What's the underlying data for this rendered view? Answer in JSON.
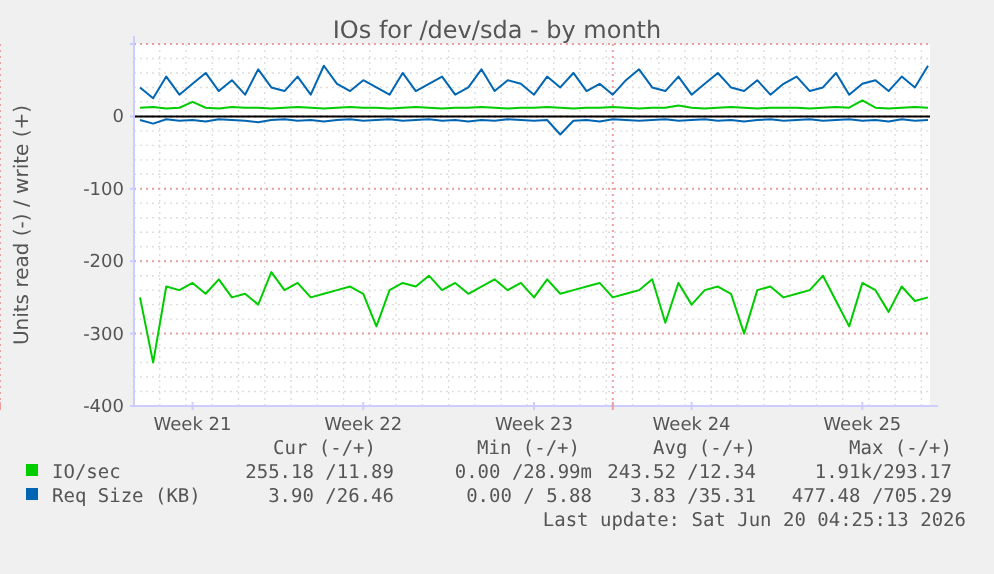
{
  "chart_data": {
    "type": "line",
    "title": "IOs for /dev/sda - by month",
    "ylabel": "Units read (-) / write (+)",
    "categories": [
      null,
      null,
      null,
      null,
      "Week 21",
      null,
      null,
      null,
      null,
      null,
      null,
      null,
      null,
      null,
      null,
      null,
      null,
      "Week 22",
      null,
      null,
      null,
      null,
      null,
      null,
      null,
      null,
      null,
      null,
      null,
      null,
      "Week 23",
      null,
      null,
      null,
      null,
      null,
      null,
      null,
      null,
      null,
      null,
      null,
      "Week 24",
      null,
      null,
      null,
      null,
      null,
      null,
      null,
      null,
      null,
      null,
      null,
      null,
      "Week 25",
      null,
      null,
      null,
      null,
      null
    ],
    "series": [
      {
        "color": "#00cc00",
        "values": [
          -250,
          -340,
          -235,
          -240,
          -230,
          -245,
          -225,
          -250,
          -245,
          -260,
          -215,
          -240,
          -230,
          -250,
          -245,
          -240,
          -235,
          -245,
          -290,
          -240,
          -230,
          -235,
          -220,
          -240,
          -230,
          -245,
          -235,
          -225,
          -240,
          -230,
          -250,
          -225,
          -245,
          -240,
          -235,
          -230,
          -250,
          -245,
          -240,
          -225,
          -285,
          -230,
          -260,
          -240,
          -235,
          -245,
          -300,
          -240,
          -235,
          -250,
          -245,
          -240,
          -220,
          -255,
          -290,
          -230,
          -240,
          -270,
          -235,
          -255,
          -250
        ]
      },
      {
        "name": "IO/sec",
        "color": "#00cc00",
        "values": [
          12,
          13,
          11,
          12,
          20,
          12,
          11,
          13,
          12,
          12,
          11,
          12,
          13,
          12,
          11,
          12,
          13,
          12,
          12,
          11,
          12,
          13,
          12,
          11,
          12,
          12,
          13,
          12,
          11,
          12,
          12,
          13,
          12,
          11,
          12,
          12,
          13,
          12,
          11,
          12,
          12,
          15,
          12,
          11,
          12,
          13,
          12,
          11,
          12,
          12,
          12,
          11,
          12,
          13,
          12,
          22,
          12,
          11,
          12,
          13,
          12
        ]
      },
      {
        "color": "#0066b3",
        "values": [
          -5,
          -10,
          -4,
          -6,
          -5,
          -7,
          -4,
          -5,
          -6,
          -8,
          -5,
          -4,
          -6,
          -5,
          -7,
          -5,
          -4,
          -6,
          -5,
          -4,
          -6,
          -5,
          -4,
          -6,
          -5,
          -7,
          -5,
          -6,
          -4,
          -5,
          -6,
          -5,
          -25,
          -6,
          -5,
          -7,
          -4,
          -5,
          -6,
          -5,
          -4,
          -6,
          -5,
          -4,
          -6,
          -5,
          -7,
          -5,
          -4,
          -6,
          -5,
          -4,
          -6,
          -5,
          -4,
          -6,
          -5,
          -7,
          -4,
          -6,
          -5
        ]
      },
      {
        "name": "Req Size (KB)",
        "color": "#0066b3",
        "values": [
          40,
          25,
          55,
          30,
          45,
          60,
          35,
          50,
          30,
          65,
          40,
          35,
          55,
          30,
          70,
          45,
          35,
          50,
          40,
          30,
          60,
          35,
          45,
          55,
          30,
          40,
          65,
          35,
          50,
          45,
          30,
          55,
          40,
          60,
          35,
          45,
          30,
          50,
          65,
          40,
          35,
          55,
          30,
          45,
          60,
          40,
          35,
          50,
          30,
          45,
          55,
          35,
          40,
          60,
          30,
          45,
          50,
          35,
          55,
          40,
          70
        ]
      }
    ],
    "ylim": [
      -400,
      100
    ],
    "yticks": [
      -400,
      -300,
      -200,
      -100,
      0,
      {
        "value": 100,
        "label": null
      }
    ],
    "grid": true,
    "legend": "bottom",
    "ref_lines": [
      {
        "axis": "y",
        "value": 0,
        "color": "#000000"
      }
    ],
    "annotations": [
      "Cur (-/+)",
      "Min (-/+)",
      "Avg (-/+)",
      "Max (-/+)",
      "255.18 /11.89",
      "0.00 /28.99m",
      "243.52 /12.34",
      "1.91k/293.17",
      "3.90 /26.46",
      "0.00 / 5.88",
      "3.83 /35.31",
      "477.48 /705.29",
      "Last update: Sat Jun 20 04:25:13 2026"
    ]
  }
}
